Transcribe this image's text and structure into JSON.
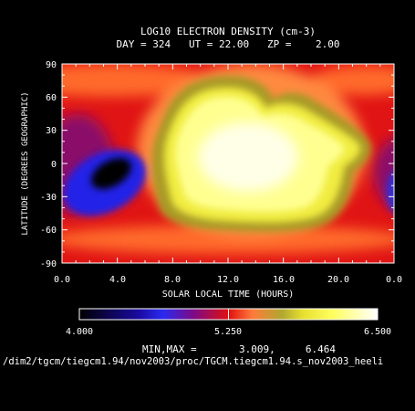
{
  "chart_data": {
    "type": "heatmap",
    "title": "LOG10 ELECTRON DENSITY (cm-3)",
    "subtitle": "DAY = 324   UT = 22.00   ZP =    2.00",
    "xlabel": "SOLAR LOCAL TIME (HOURS)",
    "ylabel": "LATITUDE (DEGREES GEOGRAPHIC)",
    "xlim": [
      0,
      24
    ],
    "ylim": [
      -90,
      90
    ],
    "xticks": [
      "0.0",
      "4.0",
      "8.0",
      "12.0",
      "16.0",
      "20.0",
      "0.0"
    ],
    "yticks": [
      "90",
      "60",
      "30",
      "0",
      "-30",
      "-60",
      "-90"
    ],
    "colorbar": {
      "min_label": "4.000",
      "mid_label": "5.250",
      "max_label": "6.500",
      "range": [
        4.0,
        6.5
      ]
    },
    "minmax_text": "MIN,MAX =       3.009,     6.464",
    "footer_path": "/dim2/tgcm/tiegcm1.94/nov2003/proc/TGCM.tiegcm1.94.s_nov2003_heeli",
    "features": [
      {
        "name": "dayside peak",
        "x": 14.0,
        "y": 12,
        "value": 6.46
      },
      {
        "name": "nightside trough",
        "x": 3.0,
        "y": -8,
        "value": 3.01
      },
      {
        "name": "southern trough",
        "x": 23.8,
        "y": -20,
        "value": 4.4
      }
    ]
  }
}
